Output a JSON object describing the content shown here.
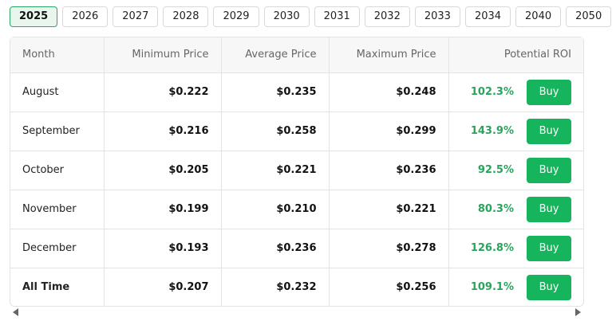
{
  "years": [
    {
      "label": "2025",
      "active": true
    },
    {
      "label": "2026"
    },
    {
      "label": "2027"
    },
    {
      "label": "2028"
    },
    {
      "label": "2029"
    },
    {
      "label": "2030"
    },
    {
      "label": "2031"
    },
    {
      "label": "2032"
    },
    {
      "label": "2033"
    },
    {
      "label": "2034"
    },
    {
      "label": "2040"
    },
    {
      "label": "2050"
    }
  ],
  "table": {
    "headers": {
      "month": "Month",
      "min": "Minimum Price",
      "avg": "Average Price",
      "max": "Maximum Price",
      "roi": "Potential ROI"
    },
    "buy_label": "Buy",
    "rows": [
      {
        "month": "August",
        "min": "$0.222",
        "avg": "$0.235",
        "max": "$0.248",
        "roi": "102.3%"
      },
      {
        "month": "September",
        "min": "$0.216",
        "avg": "$0.258",
        "max": "$0.299",
        "roi": "143.9%"
      },
      {
        "month": "October",
        "min": "$0.205",
        "avg": "$0.221",
        "max": "$0.236",
        "roi": "92.5%"
      },
      {
        "month": "November",
        "min": "$0.199",
        "avg": "$0.210",
        "max": "$0.221",
        "roi": "80.3%"
      },
      {
        "month": "December",
        "min": "$0.193",
        "avg": "$0.236",
        "max": "$0.278",
        "roi": "126.8%"
      },
      {
        "month": "All Time",
        "min": "$0.207",
        "avg": "$0.232",
        "max": "$0.256",
        "roi": "109.1%",
        "total": true
      }
    ]
  },
  "colors": {
    "accent": "#16b45c",
    "roi_text": "#27a55b",
    "active_tab_bg": "#e8f6ee",
    "active_tab_border": "#2fa866"
  }
}
